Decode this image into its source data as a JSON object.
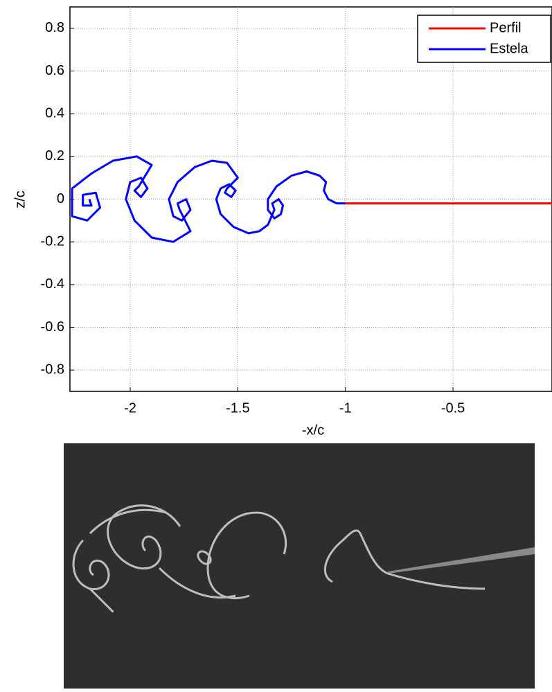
{
  "chart_data": {
    "type": "line",
    "xlabel": "-x/c",
    "ylabel": "z/c",
    "xlim": [
      -2.28,
      -0.04
    ],
    "ylim": [
      -0.9,
      0.9
    ],
    "xticks": [
      -2,
      -1.5,
      -1,
      -0.5
    ],
    "yticks": [
      -0.8,
      -0.6,
      -0.4,
      -0.2,
      0,
      0.2,
      0.4,
      0.6,
      0.8
    ],
    "grid": true,
    "legend": "upper right",
    "series": [
      {
        "name": "Perfil",
        "color": "#ff0000",
        "x": [
          -1.0,
          -0.04
        ],
        "values": [
          -0.02,
          -0.02
        ]
      },
      {
        "name": "Estela",
        "color": "#0000ff",
        "x": [
          -1.0,
          -1.04,
          -1.08,
          -1.1,
          -1.09,
          -1.12,
          -1.18,
          -1.25,
          -1.32,
          -1.36,
          -1.36,
          -1.33,
          -1.3,
          -1.29,
          -1.31,
          -1.34,
          -1.33,
          -1.36,
          -1.4,
          -1.45,
          -1.52,
          -1.58,
          -1.6,
          -1.58,
          -1.54,
          -1.51,
          -1.53,
          -1.56,
          -1.55,
          -1.5,
          -1.55,
          -1.62,
          -1.7,
          -1.78,
          -1.82,
          -1.8,
          -1.76,
          -1.72,
          -1.74,
          -1.78,
          -1.77,
          -1.72,
          -1.8,
          -1.9,
          -1.98,
          -2.02,
          -2.0,
          -1.95,
          -1.92,
          -1.95,
          -1.98,
          -1.96,
          -1.9,
          -1.97,
          -2.08,
          -2.18,
          -2.27,
          -2.27,
          -2.2,
          -2.14,
          -2.16,
          -2.22,
          -2.22,
          -2.18,
          -2.19
        ],
        "values": [
          -0.02,
          -0.02,
          0.0,
          0.04,
          0.08,
          0.11,
          0.13,
          0.11,
          0.06,
          0.0,
          -0.05,
          -0.09,
          -0.07,
          -0.03,
          0.0,
          -0.02,
          -0.05,
          -0.12,
          -0.15,
          -0.16,
          -0.13,
          -0.07,
          0.0,
          0.05,
          0.07,
          0.04,
          0.01,
          0.03,
          0.05,
          0.1,
          0.17,
          0.18,
          0.15,
          0.08,
          0.0,
          -0.08,
          -0.1,
          -0.05,
          0.0,
          -0.02,
          -0.05,
          -0.15,
          -0.2,
          -0.18,
          -0.1,
          0.0,
          0.08,
          0.1,
          0.05,
          0.01,
          0.04,
          0.06,
          0.16,
          0.2,
          0.18,
          0.12,
          0.05,
          -0.08,
          -0.1,
          -0.04,
          0.03,
          0.02,
          -0.03,
          -0.03,
          0.0
        ]
      }
    ]
  }
}
